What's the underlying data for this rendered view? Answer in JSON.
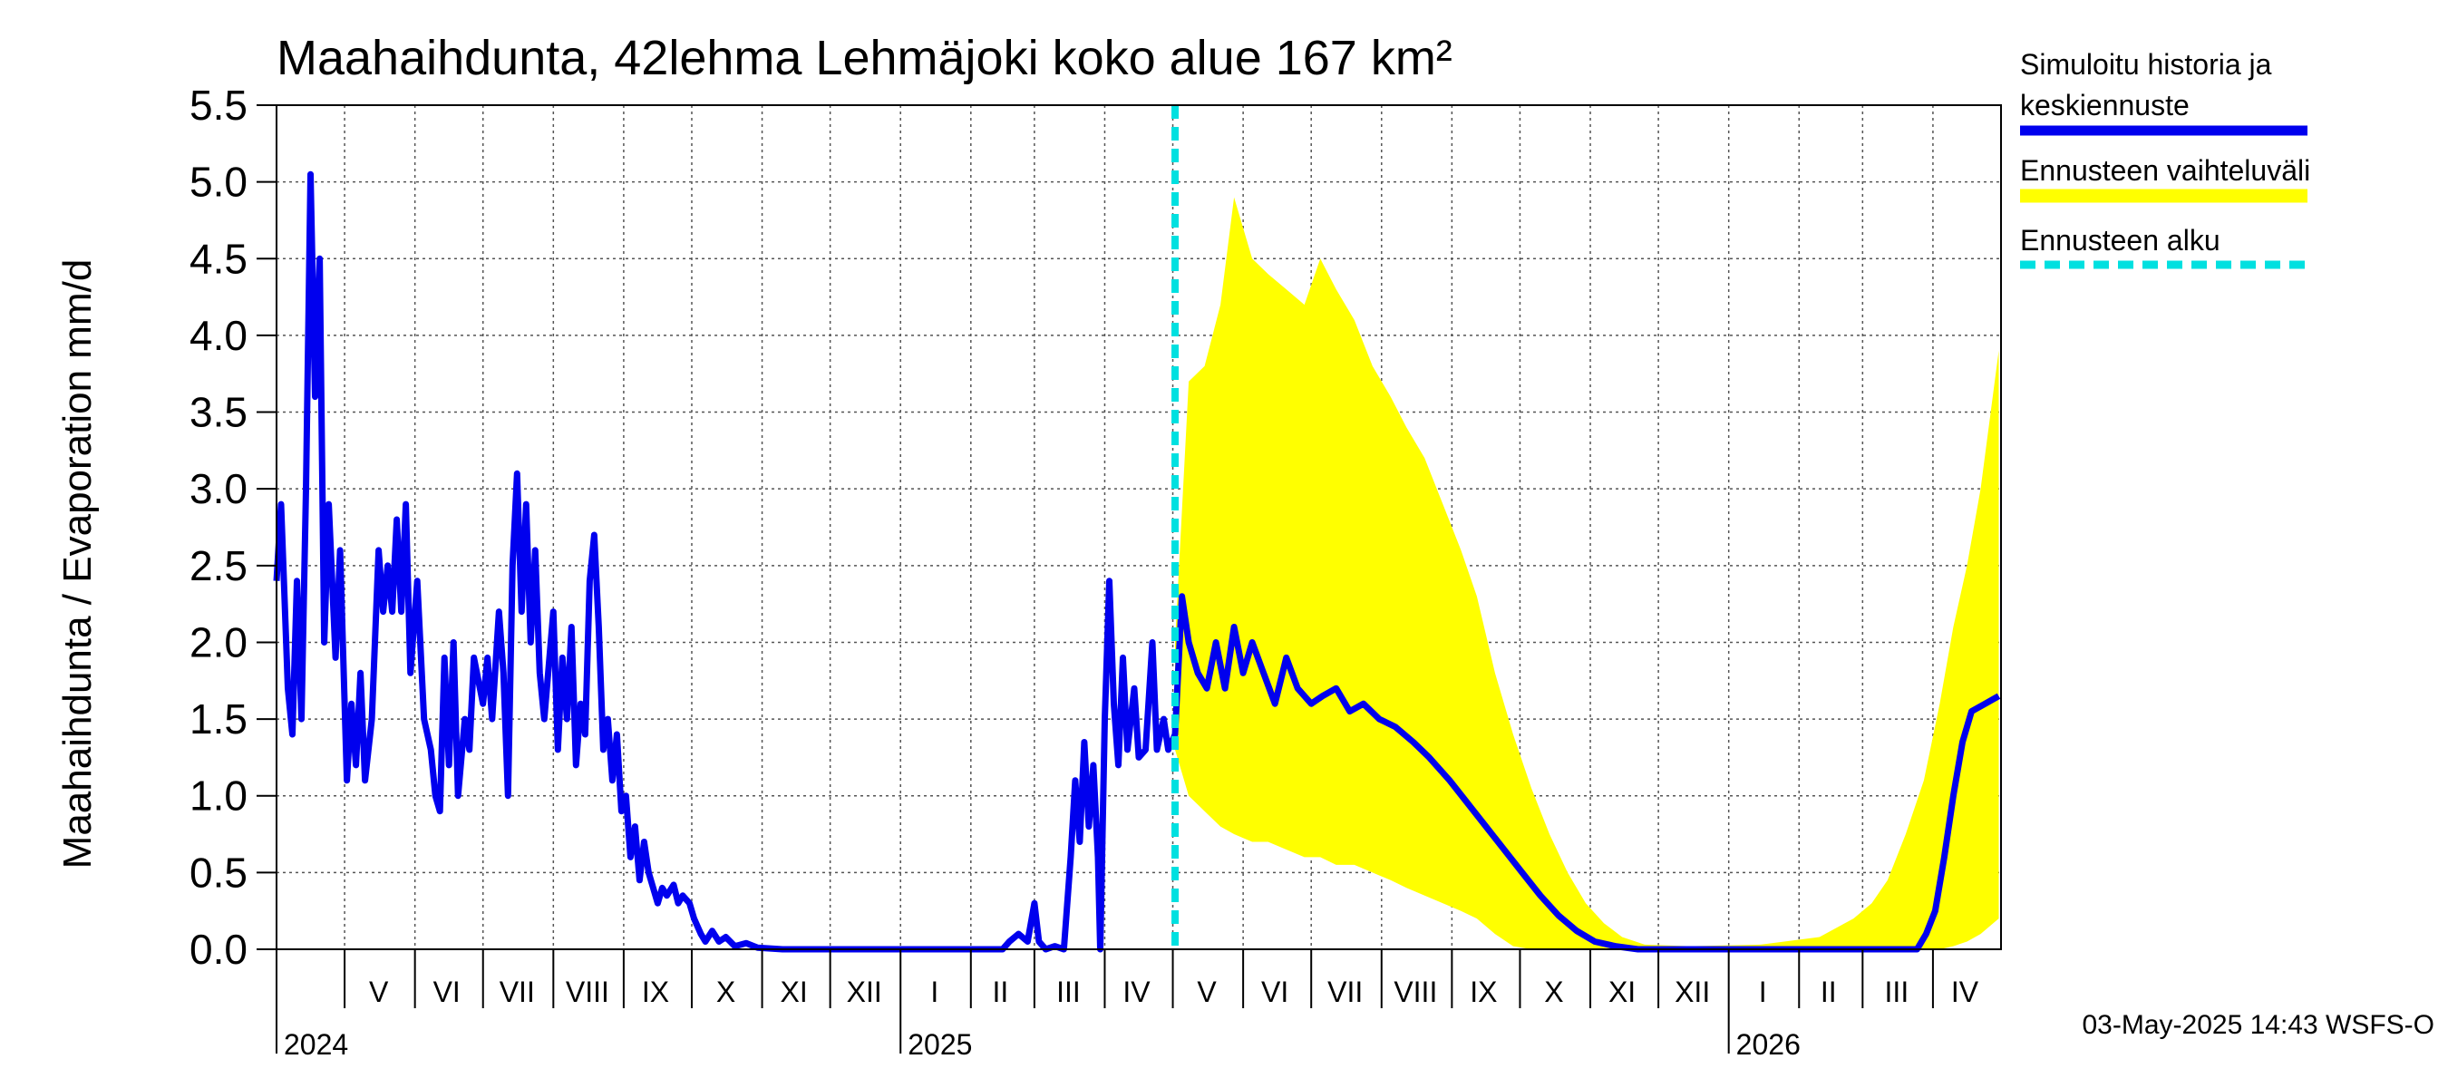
{
  "chart_data": {
    "type": "line",
    "title": "Maahaihdunta, 42lehma Lehmäjoki koko alue 167 km²",
    "ylabel": "Maahaihdunta / Evaporation   mm/d",
    "ylim": [
      0,
      5.5
    ],
    "yticks": [
      "0.0",
      "0.5",
      "1.0",
      "1.5",
      "2.0",
      "2.5",
      "3.0",
      "3.5",
      "4.0",
      "4.5",
      "5.0",
      "5.5"
    ],
    "xlim": [
      "2024-04-01",
      "2026-04-30"
    ],
    "grid": true,
    "legend_position": "right",
    "month_labels": [
      {
        "label": "V",
        "date": "2024-05-16"
      },
      {
        "label": "VI",
        "date": "2024-06-15"
      },
      {
        "label": "VII",
        "date": "2024-07-16"
      },
      {
        "label": "VIII",
        "date": "2024-08-16"
      },
      {
        "label": "IX",
        "date": "2024-09-15"
      },
      {
        "label": "X",
        "date": "2024-10-16"
      },
      {
        "label": "XI",
        "date": "2024-11-15"
      },
      {
        "label": "XII",
        "date": "2024-12-16"
      },
      {
        "label": "I",
        "date": "2025-01-16"
      },
      {
        "label": "II",
        "date": "2025-02-14"
      },
      {
        "label": "III",
        "date": "2025-03-16"
      },
      {
        "label": "IV",
        "date": "2025-04-15"
      },
      {
        "label": "V",
        "date": "2025-05-16"
      },
      {
        "label": "VI",
        "date": "2025-06-15"
      },
      {
        "label": "VII",
        "date": "2025-07-16"
      },
      {
        "label": "VIII",
        "date": "2025-08-16"
      },
      {
        "label": "IX",
        "date": "2025-09-15"
      },
      {
        "label": "X",
        "date": "2025-10-16"
      },
      {
        "label": "XI",
        "date": "2025-11-15"
      },
      {
        "label": "XII",
        "date": "2025-12-16"
      },
      {
        "label": "I",
        "date": "2026-01-16"
      },
      {
        "label": "II",
        "date": "2026-02-14"
      },
      {
        "label": "III",
        "date": "2026-03-16"
      },
      {
        "label": "IV",
        "date": "2026-04-15"
      }
    ],
    "year_labels": [
      {
        "label": "2024",
        "date": "2024-04-01"
      },
      {
        "label": "2025",
        "date": "2025-01-01"
      },
      {
        "label": "2026",
        "date": "2026-01-01"
      }
    ],
    "forecast_start": "2025-05-02",
    "series": [
      {
        "name": "Simuloitu historia ja keskiennuste",
        "color": "#0000ee",
        "points": [
          [
            "2024-04-01",
            2.4
          ],
          [
            "2024-04-03",
            2.9
          ],
          [
            "2024-04-06",
            1.7
          ],
          [
            "2024-04-08",
            1.4
          ],
          [
            "2024-04-10",
            2.4
          ],
          [
            "2024-04-12",
            1.5
          ],
          [
            "2024-04-14",
            3.0
          ],
          [
            "2024-04-16",
            5.05
          ],
          [
            "2024-04-18",
            3.6
          ],
          [
            "2024-04-20",
            4.5
          ],
          [
            "2024-04-22",
            2.0
          ],
          [
            "2024-04-24",
            2.9
          ],
          [
            "2024-04-27",
            1.9
          ],
          [
            "2024-04-29",
            2.6
          ],
          [
            "2024-05-02",
            1.1
          ],
          [
            "2024-05-04",
            1.6
          ],
          [
            "2024-05-06",
            1.2
          ],
          [
            "2024-05-08",
            1.8
          ],
          [
            "2024-05-10",
            1.1
          ],
          [
            "2024-05-13",
            1.5
          ],
          [
            "2024-05-16",
            2.6
          ],
          [
            "2024-05-18",
            2.2
          ],
          [
            "2024-05-20",
            2.5
          ],
          [
            "2024-05-22",
            2.2
          ],
          [
            "2024-05-24",
            2.8
          ],
          [
            "2024-05-26",
            2.2
          ],
          [
            "2024-05-28",
            2.9
          ],
          [
            "2024-05-30",
            1.8
          ],
          [
            "2024-06-02",
            2.4
          ],
          [
            "2024-06-05",
            1.5
          ],
          [
            "2024-06-08",
            1.3
          ],
          [
            "2024-06-10",
            1.0
          ],
          [
            "2024-06-12",
            0.9
          ],
          [
            "2024-06-14",
            1.9
          ],
          [
            "2024-06-16",
            1.2
          ],
          [
            "2024-06-18",
            2.0
          ],
          [
            "2024-06-20",
            1.0
          ],
          [
            "2024-06-23",
            1.5
          ],
          [
            "2024-06-25",
            1.3
          ],
          [
            "2024-06-27",
            1.9
          ],
          [
            "2024-07-01",
            1.6
          ],
          [
            "2024-07-03",
            1.9
          ],
          [
            "2024-07-05",
            1.5
          ],
          [
            "2024-07-08",
            2.2
          ],
          [
            "2024-07-10",
            1.8
          ],
          [
            "2024-07-12",
            1.0
          ],
          [
            "2024-07-14",
            2.5
          ],
          [
            "2024-07-16",
            3.1
          ],
          [
            "2024-07-18",
            2.2
          ],
          [
            "2024-07-20",
            2.9
          ],
          [
            "2024-07-22",
            2.0
          ],
          [
            "2024-07-24",
            2.6
          ],
          [
            "2024-07-26",
            1.8
          ],
          [
            "2024-07-28",
            1.5
          ],
          [
            "2024-08-01",
            2.2
          ],
          [
            "2024-08-03",
            1.3
          ],
          [
            "2024-08-05",
            1.9
          ],
          [
            "2024-08-07",
            1.5
          ],
          [
            "2024-08-09",
            2.1
          ],
          [
            "2024-08-11",
            1.2
          ],
          [
            "2024-08-13",
            1.6
          ],
          [
            "2024-08-15",
            1.4
          ],
          [
            "2024-08-17",
            2.4
          ],
          [
            "2024-08-19",
            2.7
          ],
          [
            "2024-08-21",
            2.1
          ],
          [
            "2024-08-23",
            1.3
          ],
          [
            "2024-08-25",
            1.5
          ],
          [
            "2024-08-27",
            1.1
          ],
          [
            "2024-08-29",
            1.4
          ],
          [
            "2024-08-31",
            0.9
          ],
          [
            "2024-09-02",
            1.0
          ],
          [
            "2024-09-04",
            0.6
          ],
          [
            "2024-09-06",
            0.8
          ],
          [
            "2024-09-08",
            0.45
          ],
          [
            "2024-09-10",
            0.7
          ],
          [
            "2024-09-12",
            0.5
          ],
          [
            "2024-09-14",
            0.4
          ],
          [
            "2024-09-16",
            0.3
          ],
          [
            "2024-09-18",
            0.4
          ],
          [
            "2024-09-20",
            0.35
          ],
          [
            "2024-09-23",
            0.42
          ],
          [
            "2024-09-25",
            0.3
          ],
          [
            "2024-09-27",
            0.35
          ],
          [
            "2024-09-30",
            0.3
          ],
          [
            "2024-10-02",
            0.2
          ],
          [
            "2024-10-05",
            0.1
          ],
          [
            "2024-10-07",
            0.05
          ],
          [
            "2024-10-10",
            0.12
          ],
          [
            "2024-10-13",
            0.05
          ],
          [
            "2024-10-16",
            0.08
          ],
          [
            "2024-10-20",
            0.02
          ],
          [
            "2024-10-25",
            0.04
          ],
          [
            "2024-10-30",
            0.01
          ],
          [
            "2024-11-10",
            0.0
          ],
          [
            "2024-12-01",
            0.0
          ],
          [
            "2025-01-01",
            0.0
          ],
          [
            "2025-02-01",
            0.0
          ],
          [
            "2025-02-15",
            0.0
          ],
          [
            "2025-02-18",
            0.05
          ],
          [
            "2025-02-22",
            0.1
          ],
          [
            "2025-02-26",
            0.05
          ],
          [
            "2025-03-01",
            0.3
          ],
          [
            "2025-03-03",
            0.05
          ],
          [
            "2025-03-06",
            0.0
          ],
          [
            "2025-03-10",
            0.02
          ],
          [
            "2025-03-14",
            0.0
          ],
          [
            "2025-03-17",
            0.6
          ],
          [
            "2025-03-19",
            1.1
          ],
          [
            "2025-03-21",
            0.7
          ],
          [
            "2025-03-23",
            1.35
          ],
          [
            "2025-03-25",
            0.8
          ],
          [
            "2025-03-27",
            1.2
          ],
          [
            "2025-03-29",
            0.6
          ],
          [
            "2025-03-30",
            0.0
          ],
          [
            "2025-04-01",
            1.5
          ],
          [
            "2025-04-03",
            2.4
          ],
          [
            "2025-04-05",
            1.6
          ],
          [
            "2025-04-07",
            1.2
          ],
          [
            "2025-04-09",
            1.9
          ],
          [
            "2025-04-11",
            1.3
          ],
          [
            "2025-04-14",
            1.7
          ],
          [
            "2025-04-16",
            1.25
          ],
          [
            "2025-04-19",
            1.3
          ],
          [
            "2025-04-22",
            2.0
          ],
          [
            "2025-04-24",
            1.3
          ],
          [
            "2025-04-27",
            1.5
          ],
          [
            "2025-04-29",
            1.3
          ],
          [
            "2025-05-02",
            1.4
          ],
          [
            "2025-05-05",
            2.3
          ],
          [
            "2025-05-08",
            2.0
          ],
          [
            "2025-05-12",
            1.8
          ],
          [
            "2025-05-16",
            1.7
          ],
          [
            "2025-05-20",
            2.0
          ],
          [
            "2025-05-24",
            1.7
          ],
          [
            "2025-05-28",
            2.1
          ],
          [
            "2025-06-01",
            1.8
          ],
          [
            "2025-06-05",
            2.0
          ],
          [
            "2025-06-10",
            1.8
          ],
          [
            "2025-06-15",
            1.6
          ],
          [
            "2025-06-20",
            1.9
          ],
          [
            "2025-06-25",
            1.7
          ],
          [
            "2025-07-01",
            1.6
          ],
          [
            "2025-07-06",
            1.65
          ],
          [
            "2025-07-12",
            1.7
          ],
          [
            "2025-07-18",
            1.55
          ],
          [
            "2025-07-24",
            1.6
          ],
          [
            "2025-07-31",
            1.5
          ],
          [
            "2025-08-07",
            1.45
          ],
          [
            "2025-08-15",
            1.35
          ],
          [
            "2025-08-22",
            1.25
          ],
          [
            "2025-08-31",
            1.1
          ],
          [
            "2025-09-08",
            0.95
          ],
          [
            "2025-09-16",
            0.8
          ],
          [
            "2025-09-24",
            0.65
          ],
          [
            "2025-10-02",
            0.5
          ],
          [
            "2025-10-10",
            0.35
          ],
          [
            "2025-10-18",
            0.22
          ],
          [
            "2025-10-26",
            0.12
          ],
          [
            "2025-11-03",
            0.05
          ],
          [
            "2025-11-12",
            0.02
          ],
          [
            "2025-11-22",
            0.0
          ],
          [
            "2025-12-15",
            0.0
          ],
          [
            "2026-01-15",
            0.0
          ],
          [
            "2026-02-15",
            0.0
          ],
          [
            "2026-03-15",
            0.0
          ],
          [
            "2026-03-25",
            0.0
          ],
          [
            "2026-03-29",
            0.1
          ],
          [
            "2026-04-02",
            0.25
          ],
          [
            "2026-04-06",
            0.6
          ],
          [
            "2026-04-10",
            1.0
          ],
          [
            "2026-04-14",
            1.35
          ],
          [
            "2026-04-18",
            1.55
          ],
          [
            "2026-04-24",
            1.6
          ],
          [
            "2026-04-30",
            1.65
          ]
        ]
      },
      {
        "name": "Ennusteen vaihteluväli",
        "color": "#ffff00",
        "type": "area",
        "points": [
          [
            "2025-05-02",
            1.3,
            2.0
          ],
          [
            "2025-05-08",
            1.0,
            3.7
          ],
          [
            "2025-05-15",
            0.9,
            3.8
          ],
          [
            "2025-05-22",
            0.8,
            4.2
          ],
          [
            "2025-05-28",
            0.75,
            4.9
          ],
          [
            "2025-06-05",
            0.7,
            4.5
          ],
          [
            "2025-06-12",
            0.7,
            4.4
          ],
          [
            "2025-06-20",
            0.65,
            4.3
          ],
          [
            "2025-06-28",
            0.6,
            4.2
          ],
          [
            "2025-07-05",
            0.6,
            4.5
          ],
          [
            "2025-07-12",
            0.55,
            4.3
          ],
          [
            "2025-07-20",
            0.55,
            4.1
          ],
          [
            "2025-07-28",
            0.5,
            3.8
          ],
          [
            "2025-08-05",
            0.45,
            3.6
          ],
          [
            "2025-08-12",
            0.4,
            3.4
          ],
          [
            "2025-08-20",
            0.35,
            3.2
          ],
          [
            "2025-08-28",
            0.3,
            2.9
          ],
          [
            "2025-09-05",
            0.25,
            2.6
          ],
          [
            "2025-09-12",
            0.2,
            2.3
          ],
          [
            "2025-09-20",
            0.1,
            1.8
          ],
          [
            "2025-09-28",
            0.02,
            1.4
          ],
          [
            "2025-10-06",
            0.0,
            1.05
          ],
          [
            "2025-10-14",
            0.0,
            0.75
          ],
          [
            "2025-10-22",
            0.0,
            0.5
          ],
          [
            "2025-10-30",
            0.0,
            0.3
          ],
          [
            "2025-11-07",
            0.0,
            0.17
          ],
          [
            "2025-11-15",
            0.0,
            0.08
          ],
          [
            "2025-11-25",
            0.0,
            0.03
          ],
          [
            "2025-12-15",
            0.0,
            0.02
          ],
          [
            "2026-01-15",
            0.0,
            0.03
          ],
          [
            "2026-02-10",
            0.0,
            0.08
          ],
          [
            "2026-02-25",
            0.0,
            0.2
          ],
          [
            "2026-03-05",
            0.0,
            0.3
          ],
          [
            "2026-03-12",
            0.0,
            0.45
          ],
          [
            "2026-03-20",
            0.0,
            0.75
          ],
          [
            "2026-03-28",
            0.0,
            1.1
          ],
          [
            "2026-04-04",
            0.0,
            1.6
          ],
          [
            "2026-04-10",
            0.02,
            2.1
          ],
          [
            "2026-04-16",
            0.05,
            2.5
          ],
          [
            "2026-04-22",
            0.1,
            3.0
          ],
          [
            "2026-04-30",
            0.2,
            3.9
          ]
        ]
      },
      {
        "name": "Ennusteen alku",
        "color": "#00e0e0",
        "type": "vline"
      }
    ],
    "footer": "03-May-2025 14:43 WSFS-O"
  }
}
